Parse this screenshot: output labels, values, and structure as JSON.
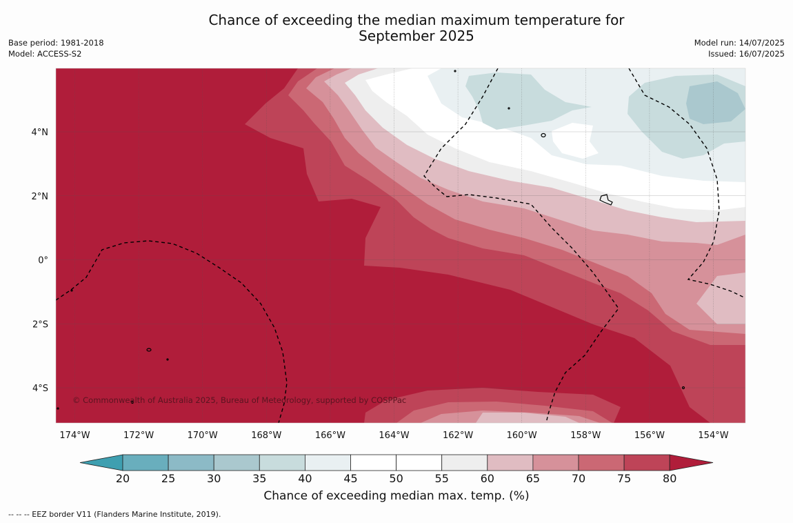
{
  "title": {
    "line1": "Chance of exceeding the median maximum temperature for",
    "line2": "September 2025"
  },
  "meta": {
    "base_period": "Base period: 1981-2018",
    "model": "Model: ACCESS-S2",
    "model_run": "Model run: 14/07/2025",
    "issued": "Issued: 16/07/2025"
  },
  "map": {
    "lon_labels": [
      "174°W",
      "172°W",
      "170°W",
      "168°W",
      "166°W",
      "164°W",
      "162°W",
      "160°W",
      "158°W",
      "156°W",
      "154°W"
    ],
    "lat_labels": [
      "4°N",
      "2°N",
      "0°",
      "2°S",
      "4°S"
    ],
    "copyright": "© Commonwealth of Australia 2025, Bureau of Meteorology, supported by COSPPac",
    "colors": {
      "c_lt25": "#3e9fb0",
      "c_20_25": "#69aebd",
      "c_25_30": "#8cbac6",
      "c_30_35": "#aac8ce",
      "c_35_40": "#c8dcdd",
      "c_40_45": "#e9f0f2",
      "c_45_55": "#ffffff",
      "c_55_60": "#eeeeee",
      "c_60_65": "#e0bcc2",
      "c_65_70": "#d6919a",
      "c_70_75": "#cb6874",
      "c_75_80": "#be4458",
      "c_gt80": "#b01d3a"
    }
  },
  "colorbar": {
    "ticks": [
      "20",
      "25",
      "30",
      "35",
      "40",
      "45",
      "50",
      "55",
      "60",
      "65",
      "70",
      "75",
      "80"
    ],
    "label": "Chance of exceeding median max. temp. (%)"
  },
  "footnote": "--  --  -- EEZ border V11 (Flanders Marine Institute, 2019)."
}
